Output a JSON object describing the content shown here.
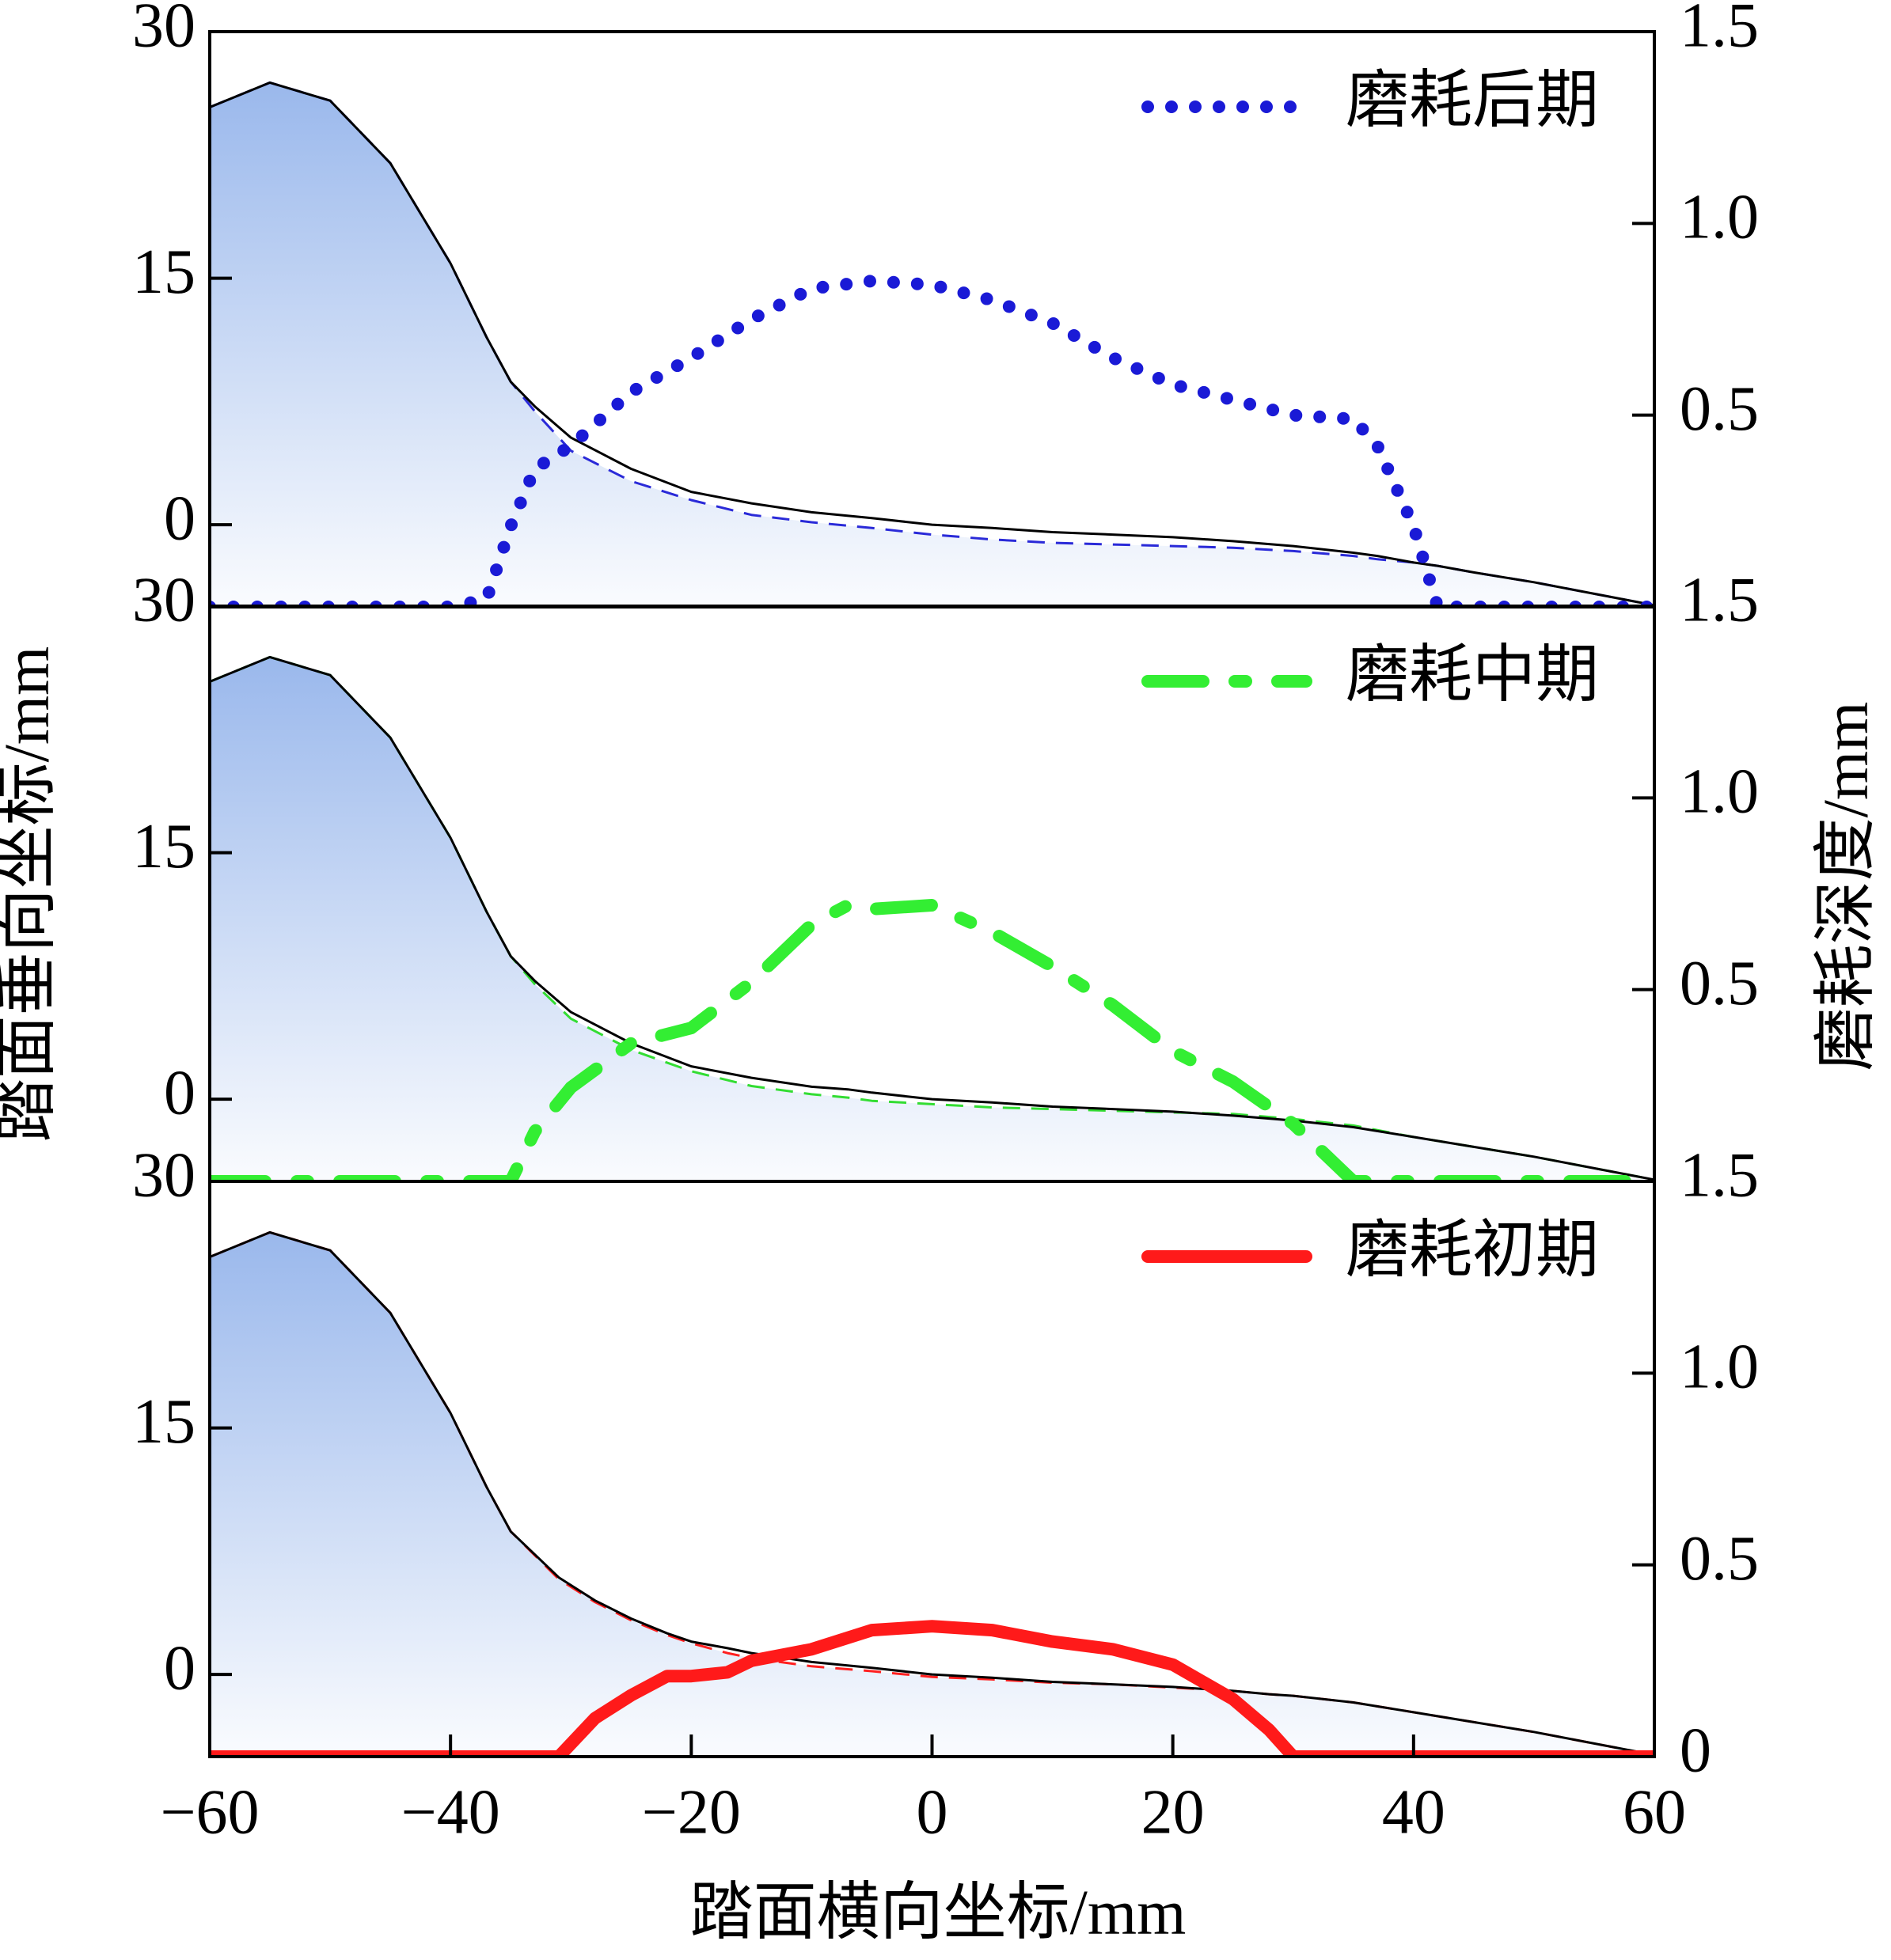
{
  "xlabel": "踏面横向坐标/mm",
  "ylabel": "踏面垂向坐标/mm",
  "y2label": "磨耗深度/mm",
  "chart_data": [
    {
      "type": "line",
      "xlim": [
        -60,
        60
      ],
      "ylim": [
        -5,
        30
      ],
      "yticks": [
        0,
        15,
        30
      ],
      "y2lim": [
        0,
        1.5
      ],
      "y2ticks": [
        0.5,
        {
          "value": 1,
          "label": "1.0"
        },
        1.5
      ],
      "legend": "upper right",
      "x": [
        -60,
        -55,
        -50,
        -45,
        -40,
        -37,
        -35,
        -33,
        -30,
        -25,
        -20,
        -15,
        -10,
        -5,
        0,
        5,
        10,
        15,
        20,
        25,
        30,
        35,
        37,
        40,
        42,
        45,
        50,
        55,
        60
      ],
      "series": [
        {
          "color": "#2a2ad8",
          "linestyle": "dashed",
          "area_color": "#9ab8ec",
          "values": [
            25.4,
            26.9,
            25.8,
            22,
            15.9,
            11.4,
            8.7,
            6.9,
            4.5,
            2.65,
            1.5,
            0.6,
            0.15,
            -0.2,
            -0.6,
            -0.9,
            -1.1,
            -1.2,
            -1.3,
            -1.4,
            -1.6,
            -1.9,
            -2.1,
            -2.3,
            -2.5,
            -2.9,
            -3.5,
            -4.2,
            -4.9
          ]
        },
        {
          "color": "#000000",
          "linestyle": "solid",
          "values": [
            25.4,
            26.9,
            25.8,
            22,
            15.9,
            11.4,
            8.7,
            7.2,
            5.3,
            3.4,
            2.0,
            1.3,
            0.76,
            0.4,
            0,
            -0.2,
            -0.45,
            -0.6,
            -0.76,
            -1.0,
            -1.3,
            -1.7,
            -1.9,
            -2.3,
            -2.5,
            -2.9,
            -3.5,
            -4.2,
            -4.9
          ]
        },
        {
          "name": "磨耗后期",
          "color": "#1a1ad6",
          "linestyle": "dotted",
          "axis": "y2",
          "values": [
            0,
            0,
            0,
            0,
            0,
            0.02,
            0.21,
            0.36,
            0.42,
            0.56,
            0.65,
            0.75,
            0.83,
            0.85,
            0.84,
            0.8,
            0.74,
            0.65,
            0.58,
            0.54,
            0.5,
            0.49,
            0.42,
            0.21,
            0,
            0,
            0,
            0,
            0
          ]
        }
      ]
    },
    {
      "type": "line",
      "xlim": [
        -60,
        60
      ],
      "ylim": [
        -5,
        30
      ],
      "yticks": [
        0,
        15,
        30
      ],
      "y2lim": [
        0,
        1.5
      ],
      "y2ticks": [
        0.5,
        {
          "value": 1,
          "label": "1.0"
        },
        1.5
      ],
      "legend": "upper right",
      "x": [
        -60,
        -55,
        -50,
        -45,
        -40,
        -37,
        -35,
        -33,
        -30,
        -25,
        -20,
        -15,
        -10,
        -7,
        -5,
        0,
        5,
        10,
        15,
        20,
        25,
        30,
        35,
        40,
        45,
        50,
        55,
        60
      ],
      "series": [
        {
          "color": "#33dd33",
          "linestyle": "dashed",
          "area_color": "#9ab8ec",
          "values": [
            25.4,
            26.9,
            25.8,
            22,
            15.9,
            11.4,
            8.7,
            7.0,
            4.9,
            3.0,
            1.7,
            0.8,
            0.3,
            0.1,
            -0.1,
            -0.3,
            -0.5,
            -0.6,
            -0.7,
            -0.8,
            -0.9,
            -1.2,
            -1.6,
            -2.3,
            -2.9,
            -3.5,
            -4.2,
            -4.9
          ]
        },
        {
          "color": "#000000",
          "linestyle": "solid",
          "values": [
            25.4,
            26.9,
            25.8,
            22,
            15.9,
            11.4,
            8.7,
            7.2,
            5.3,
            3.4,
            2.0,
            1.3,
            0.76,
            0.6,
            0.4,
            0,
            -0.2,
            -0.45,
            -0.6,
            -0.76,
            -1.0,
            -1.3,
            -1.7,
            -2.3,
            -2.9,
            -3.5,
            -4.2,
            -4.9
          ]
        },
        {
          "name": "磨耗中期",
          "color": "#33ee33",
          "linestyle": "dashdot",
          "axis": "y2",
          "values": [
            0,
            0,
            0,
            0,
            0,
            0,
            0,
            0.13,
            0.245,
            0.36,
            0.4,
            0.52,
            0.67,
            0.72,
            0.71,
            0.72,
            0.65,
            0.56,
            0.46,
            0.34,
            0.26,
            0.15,
            0,
            0,
            0,
            0,
            0,
            0
          ]
        }
      ]
    },
    {
      "type": "line",
      "xlim": [
        -60,
        60
      ],
      "ylim": [
        -5,
        30
      ],
      "yticks": [
        0,
        15,
        30
      ],
      "y2lim": [
        0,
        1.5
      ],
      "y2ticks": [
        0,
        0.5,
        {
          "value": 1,
          "label": "1.0"
        },
        1.5
      ],
      "legend": "upper right",
      "xticks": [
        {
          "value": -60,
          "label": "−60"
        },
        {
          "value": -40,
          "label": "−40"
        },
        {
          "value": -20,
          "label": "−20"
        },
        0,
        20,
        40,
        60
      ],
      "x": [
        -60,
        -55,
        -50,
        -45,
        -40,
        -37,
        -35,
        -31,
        -28,
        -25,
        -22,
        -20,
        -17,
        -15,
        -10,
        -5,
        0,
        5,
        10,
        15,
        20,
        25,
        28,
        30,
        35,
        40,
        45,
        50,
        55,
        60
      ],
      "series": [
        {
          "color": "#ff2020",
          "linestyle": "dashed",
          "area_color": "#9ab8ec",
          "values": [
            25.4,
            26.9,
            25.8,
            22,
            15.9,
            11.4,
            8.7,
            5.8,
            4.4,
            3.3,
            2.4,
            1.9,
            1.3,
            1.0,
            0.5,
            0.2,
            -0.15,
            -0.3,
            -0.5,
            -0.6,
            -0.8,
            -1.0,
            -1.2,
            -1.3,
            -1.7,
            -2.3,
            -2.9,
            -3.5,
            -4.2,
            -4.9
          ]
        },
        {
          "color": "#000000",
          "linestyle": "solid",
          "values": [
            25.4,
            26.9,
            25.8,
            22,
            15.9,
            11.4,
            8.7,
            5.9,
            4.5,
            3.4,
            2.5,
            2.0,
            1.6,
            1.3,
            0.76,
            0.4,
            0,
            -0.2,
            -0.45,
            -0.6,
            -0.76,
            -1.0,
            -1.2,
            -1.3,
            -1.7,
            -2.3,
            -2.9,
            -3.5,
            -4.2,
            -4.9
          ]
        },
        {
          "name": "磨耗初期",
          "color": "#ff1a1a",
          "linestyle": "solid",
          "axis": "y2",
          "values": [
            0,
            0,
            0,
            0,
            0,
            0,
            0,
            0,
            0.1,
            0.16,
            0.21,
            0.21,
            0.22,
            0.25,
            0.28,
            0.33,
            0.34,
            0.33,
            0.3,
            0.28,
            0.24,
            0.15,
            0.07,
            0,
            0,
            0,
            0,
            0,
            0,
            0
          ]
        }
      ]
    }
  ]
}
